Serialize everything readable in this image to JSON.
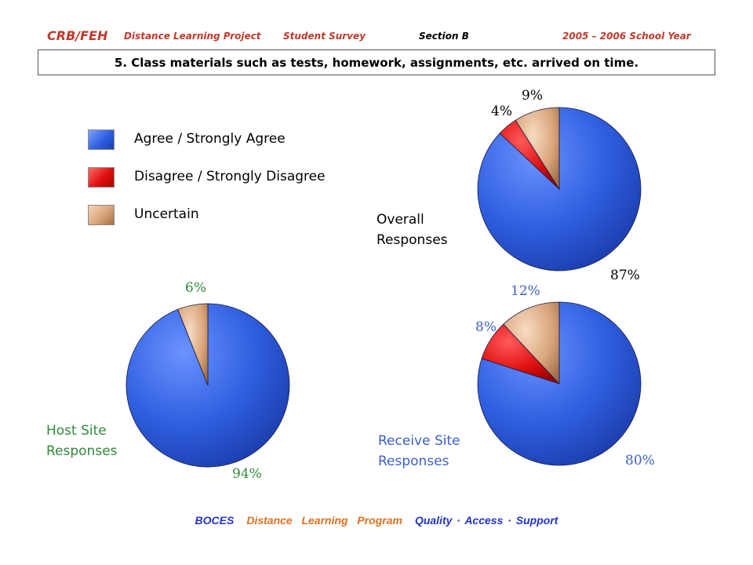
{
  "header": {
    "org": "CRB/FEH",
    "project": "Distance Learning Project",
    "survey": "Student Survey",
    "section": "Section B",
    "year": "2005 – 2006 School Year"
  },
  "question": "5. Class materials such as tests, homework, assignments, etc. arrived on time.",
  "legend": [
    {
      "label": "Agree / Strongly Agree",
      "color": "#2f5fe0"
    },
    {
      "label": "Disagree / Strongly Disagree",
      "color": "#e01010"
    },
    {
      "label": "Uncertain",
      "color": "#d9a47a"
    }
  ],
  "chart_data": [
    {
      "type": "pie",
      "title": "Overall\nResponses",
      "categories": [
        "Agree / Strongly Agree",
        "Disagree / Strongly Disagree",
        "Uncertain"
      ],
      "values": [
        87,
        4,
        9
      ],
      "value_labels": [
        "87%",
        "4%",
        "9%"
      ],
      "label_color": "#000000"
    },
    {
      "type": "pie",
      "title": "Host Site\nResponses",
      "categories": [
        "Agree / Strongly Agree",
        "Disagree / Strongly Disagree",
        "Uncertain"
      ],
      "values": [
        94,
        0,
        6
      ],
      "value_labels": [
        "94%",
        "",
        "6%"
      ],
      "label_color": "#2e8b3a"
    },
    {
      "type": "pie",
      "title": "Receive Site\nResponses",
      "categories": [
        "Agree / Strongly Agree",
        "Disagree / Strongly Disagree",
        "Uncertain"
      ],
      "values": [
        80,
        8,
        12
      ],
      "value_labels": [
        "80%",
        "8%",
        "12%"
      ],
      "label_color": "#3a5fc8"
    }
  ],
  "footer": {
    "boces": "BOCES",
    "program": "Distance  Learning  Program",
    "tagline": "Quality · Access · Support",
    "boces_color": "#2233cc",
    "program_color": "#e07020",
    "tagline_color": "#2233cc"
  },
  "colors": {
    "header": "#c0392b",
    "overall_title": "#000000",
    "host_title": "#2e8b3a",
    "receive_title": "#3a5fc8"
  }
}
